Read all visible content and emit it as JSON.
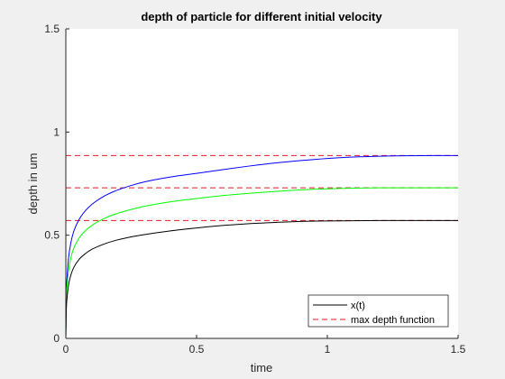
{
  "chart_data": {
    "type": "line",
    "title": "depth of particle for different initial velocity",
    "xlabel": "time",
    "ylabel": "depth in um",
    "xlim": [
      0,
      1.5
    ],
    "ylim": [
      0,
      1.5
    ],
    "xticks": [
      0,
      0.5,
      1,
      1.5
    ],
    "xtick_labels": [
      "0",
      "0.5",
      "1",
      "1.5"
    ],
    "yticks": [
      0,
      0.5,
      1,
      1.5
    ],
    "ytick_labels": [
      "0",
      "0.5",
      "1",
      "1.5"
    ],
    "grid": false,
    "legend_position": "bottom-right",
    "legend": [
      {
        "label": "x(t)",
        "color": "#000000",
        "style": "solid"
      },
      {
        "label": "max depth function",
        "color": "#e8161e",
        "style": "dashed"
      }
    ],
    "series": [
      {
        "color": "#0000ff",
        "style": "solid",
        "x": [
          0,
          0.002,
          0.005,
          0.01,
          0.02,
          0.03,
          0.05,
          0.075,
          0.1,
          0.15,
          0.2,
          0.25,
          0.3,
          0.4,
          0.5,
          0.6,
          0.7,
          0.8,
          0.9,
          1.0,
          1.1,
          1.2,
          1.3,
          1.4,
          1.5
        ],
        "y": [
          0,
          0.21,
          0.3,
          0.385,
          0.468,
          0.517,
          0.575,
          0.619,
          0.65,
          0.692,
          0.72,
          0.741,
          0.758,
          0.782,
          0.8,
          0.818,
          0.835,
          0.85,
          0.862,
          0.872,
          0.879,
          0.883,
          0.885,
          0.886,
          0.886
        ]
      },
      {
        "color": "#00ff00",
        "style": "solid",
        "x": [
          0,
          0.002,
          0.005,
          0.01,
          0.02,
          0.03,
          0.05,
          0.075,
          0.1,
          0.15,
          0.2,
          0.25,
          0.3,
          0.4,
          0.5,
          0.6,
          0.7,
          0.8,
          0.9,
          1.0,
          1.1,
          1.2,
          1.3,
          1.4,
          1.5
        ],
        "y": [
          0,
          0.18,
          0.255,
          0.325,
          0.395,
          0.436,
          0.485,
          0.522,
          0.548,
          0.583,
          0.607,
          0.625,
          0.64,
          0.662,
          0.678,
          0.692,
          0.703,
          0.712,
          0.72,
          0.725,
          0.728,
          0.73,
          0.73,
          0.73,
          0.73
        ]
      },
      {
        "color": "#000000",
        "style": "solid",
        "x": [
          0,
          0.002,
          0.005,
          0.01,
          0.02,
          0.03,
          0.05,
          0.075,
          0.1,
          0.15,
          0.2,
          0.25,
          0.3,
          0.4,
          0.5,
          0.6,
          0.7,
          0.8,
          0.9,
          1.0,
          1.1,
          1.2,
          1.3,
          1.4,
          1.5
        ],
        "y": [
          0,
          0.14,
          0.2,
          0.255,
          0.31,
          0.343,
          0.382,
          0.411,
          0.432,
          0.459,
          0.478,
          0.492,
          0.503,
          0.521,
          0.535,
          0.547,
          0.556,
          0.562,
          0.567,
          0.569,
          0.57,
          0.571,
          0.571,
          0.571,
          0.571
        ]
      }
    ],
    "reference_lines": [
      {
        "y": 0.886,
        "color": "#e8161e",
        "style": "dashed"
      },
      {
        "y": 0.73,
        "color": "#e8161e",
        "style": "dashed"
      },
      {
        "y": 0.571,
        "color": "#e8161e",
        "style": "dashed"
      }
    ]
  }
}
